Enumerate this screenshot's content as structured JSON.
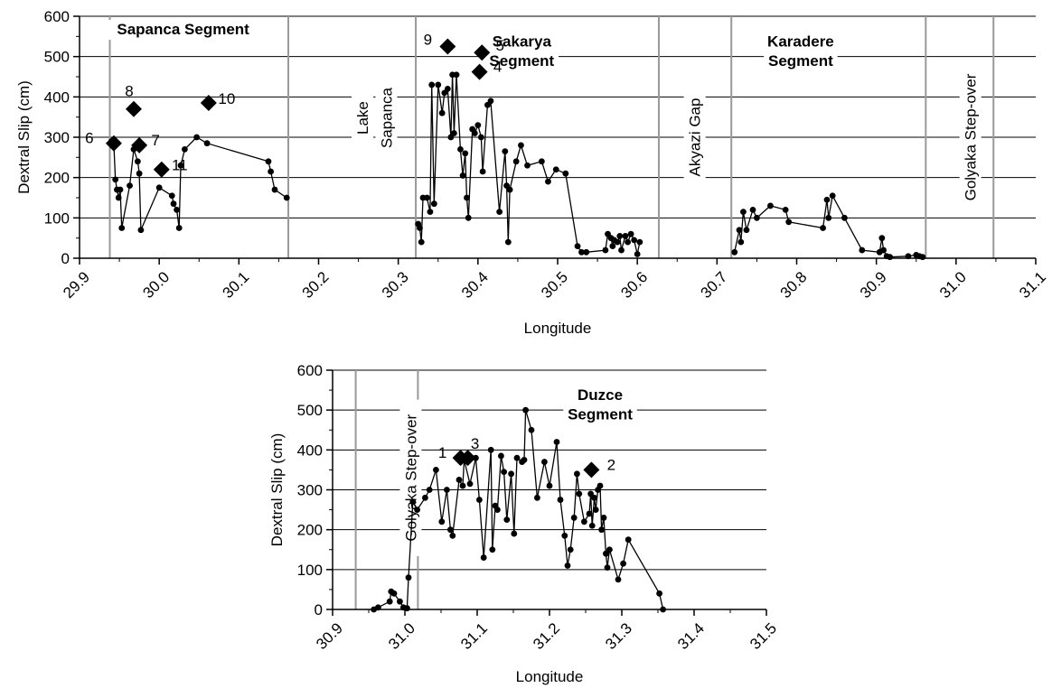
{
  "chart_data": [
    {
      "type": "scatter",
      "xlabel": "Longitude",
      "ylabel": "Dextral Slip (cm)",
      "xlim": [
        29.9,
        31.1
      ],
      "ylim": [
        0,
        600
      ],
      "x_ticks": [
        "29.9",
        "30.0",
        "30.1",
        "30.2",
        "30.3",
        "30.4",
        "30.5",
        "30.6",
        "30.7",
        "30.8",
        "30.9",
        "31.0",
        "31.1"
      ],
      "y_ticks": [
        "0",
        "100",
        "200",
        "300",
        "400",
        "500",
        "600"
      ],
      "grid": "horizontal",
      "boundary_lines": [
        29.938,
        30.162,
        30.322,
        30.627,
        30.718,
        30.962,
        31.047
      ],
      "segment_labels": [
        {
          "text": "Sapanca Segment",
          "x": 30.03,
          "y": 555
        },
        {
          "text": "Sakarya",
          "x": 30.455,
          "y": 525
        },
        {
          "text": "Segment",
          "x": 30.455,
          "y": 477
        },
        {
          "text": "Karadere",
          "x": 30.805,
          "y": 525
        },
        {
          "text": "Segment",
          "x": 30.805,
          "y": 477
        }
      ],
      "vertical_labels": [
        {
          "text": "Lake",
          "x": 30.255,
          "y": 348
        },
        {
          "text": "Sapanca",
          "x": 30.285,
          "y": 348
        },
        {
          "text": "Akyazi Gap",
          "x": 30.672,
          "y": 300
        },
        {
          "text": "Golyaka Step-over",
          "x": 31.018,
          "y": 300
        }
      ],
      "series": [
        {
          "values": [
            [
              29.94,
              290
            ],
            [
              29.943,
              285
            ],
            [
              29.945,
              195
            ],
            [
              29.947,
              170
            ],
            [
              29.949,
              150
            ],
            [
              29.951,
              170
            ],
            [
              29.953,
              75
            ],
            [
              29.963,
              180
            ],
            [
              29.968,
              270
            ],
            [
              29.973,
              240
            ],
            [
              29.975,
              210
            ],
            [
              29.977,
              70
            ],
            [
              30.0,
              175
            ],
            [
              30.016,
              155
            ],
            [
              30.018,
              135
            ],
            [
              30.022,
              120
            ],
            [
              30.025,
              75
            ],
            [
              30.027,
              230
            ],
            [
              30.032,
              270
            ],
            [
              30.047,
              300
            ],
            [
              30.06,
              285
            ],
            [
              30.137,
              240
            ],
            [
              30.14,
              215
            ],
            [
              30.145,
              170
            ],
            [
              30.16,
              150
            ]
          ]
        },
        {
          "values": [
            [
              30.325,
              85
            ],
            [
              30.327,
              75
            ],
            [
              30.329,
              40
            ],
            [
              30.331,
              150
            ],
            [
              30.336,
              150
            ],
            [
              30.34,
              115
            ],
            [
              30.342,
              430
            ],
            [
              30.345,
              135
            ],
            [
              30.35,
              430
            ],
            [
              30.355,
              360
            ],
            [
              30.358,
              410
            ],
            [
              30.362,
              420
            ],
            [
              30.366,
              300
            ],
            [
              30.368,
              455
            ],
            [
              30.37,
              310
            ],
            [
              30.373,
              455
            ],
            [
              30.378,
              270
            ],
            [
              30.381,
              205
            ],
            [
              30.384,
              260
            ],
            [
              30.386,
              150
            ],
            [
              30.388,
              100
            ],
            [
              30.393,
              320
            ],
            [
              30.396,
              310
            ],
            [
              30.4,
              330
            ],
            [
              30.404,
              300
            ],
            [
              30.406,
              215
            ],
            [
              30.412,
              380
            ],
            [
              30.416,
              390
            ],
            [
              30.427,
              115
            ],
            [
              30.434,
              265
            ],
            [
              30.436,
              180
            ],
            [
              30.438,
              40
            ],
            [
              30.44,
              170
            ],
            [
              30.448,
              240
            ],
            [
              30.454,
              280
            ],
            [
              30.462,
              230
            ],
            [
              30.48,
              240
            ],
            [
              30.488,
              190
            ],
            [
              30.498,
              220
            ],
            [
              30.51,
              210
            ],
            [
              30.525,
              30
            ],
            [
              30.53,
              15
            ],
            [
              30.536,
              15
            ],
            [
              30.56,
              20
            ],
            [
              30.563,
              60
            ],
            [
              30.567,
              50
            ],
            [
              30.569,
              30
            ],
            [
              30.571,
              45
            ],
            [
              30.575,
              40
            ],
            [
              30.578,
              55
            ],
            [
              30.58,
              20
            ],
            [
              30.585,
              55
            ],
            [
              30.588,
              40
            ],
            [
              30.592,
              60
            ],
            [
              30.596,
              45
            ],
            [
              30.6,
              10
            ],
            [
              30.603,
              40
            ]
          ]
        },
        {
          "values": [
            [
              30.722,
              15
            ],
            [
              30.728,
              70
            ],
            [
              30.73,
              40
            ],
            [
              30.733,
              115
            ],
            [
              30.737,
              70
            ],
            [
              30.745,
              120
            ],
            [
              30.75,
              100
            ],
            [
              30.767,
              130
            ],
            [
              30.786,
              120
            ],
            [
              30.79,
              90
            ],
            [
              30.833,
              75
            ],
            [
              30.838,
              145
            ],
            [
              30.84,
              100
            ],
            [
              30.845,
              155
            ],
            [
              30.86,
              100
            ],
            [
              30.882,
              20
            ],
            [
              30.904,
              15
            ],
            [
              30.907,
              50
            ],
            [
              30.909,
              20
            ],
            [
              30.913,
              5
            ],
            [
              30.917,
              3
            ],
            [
              30.94,
              5
            ],
            [
              30.95,
              8
            ],
            [
              30.954,
              5
            ],
            [
              30.958,
              3
            ]
          ]
        }
      ],
      "point_sizes": {
        "small_markers": true
      },
      "markers": [
        {
          "label": "6",
          "x": 29.943,
          "y": 285
        },
        {
          "label": "8",
          "x": 29.968,
          "y": 370
        },
        {
          "label": "7",
          "x": 29.975,
          "y": 280
        },
        {
          "label": "11",
          "x": 30.003,
          "y": 220
        },
        {
          "label": "10",
          "x": 30.062,
          "y": 385
        },
        {
          "label": "9",
          "x": 30.362,
          "y": 525
        },
        {
          "label": "5",
          "x": 30.405,
          "y": 510
        },
        {
          "label": "4",
          "x": 30.402,
          "y": 462
        }
      ]
    },
    {
      "type": "scatter",
      "xlabel": "Longitude",
      "ylabel": "Dextral Slip (cm)",
      "xlim": [
        30.9,
        31.5
      ],
      "ylim": [
        0,
        600
      ],
      "x_ticks": [
        "30.9",
        "31.0",
        "31.1",
        "31.2",
        "31.3",
        "31.4",
        "31.5"
      ],
      "y_ticks": [
        "0",
        "100",
        "200",
        "300",
        "400",
        "500",
        "600"
      ],
      "grid": "horizontal",
      "boundary_lines": [
        30.932,
        31.018
      ],
      "segment_labels": [
        {
          "text": "Duzce",
          "x": 31.27,
          "y": 525
        },
        {
          "text": "Segment",
          "x": 31.27,
          "y": 477
        }
      ],
      "vertical_labels": [
        {
          "text": "Golyaka Step-over",
          "x": 31.008,
          "y": 330
        }
      ],
      "series": [
        {
          "values": [
            [
              30.957,
              0
            ],
            [
              30.963,
              5
            ],
            [
              30.979,
              20
            ],
            [
              30.981,
              45
            ],
            [
              30.985,
              40
            ],
            [
              30.993,
              20
            ],
            [
              30.998,
              5
            ],
            [
              31.003,
              3
            ],
            [
              31.005,
              80
            ],
            [
              31.011,
              270
            ],
            [
              31.017,
              250
            ],
            [
              31.028,
              280
            ],
            [
              31.034,
              300
            ],
            [
              31.043,
              350
            ],
            [
              31.051,
              220
            ],
            [
              31.058,
              300
            ],
            [
              31.063,
              200
            ],
            [
              31.066,
              185
            ],
            [
              31.075,
              325
            ],
            [
              31.08,
              310
            ],
            [
              31.082,
              375
            ],
            [
              31.09,
              315
            ],
            [
              31.098,
              380
            ],
            [
              31.103,
              275
            ],
            [
              31.109,
              130
            ],
            [
              31.119,
              400
            ],
            [
              31.121,
              150
            ],
            [
              31.125,
              260
            ],
            [
              31.128,
              250
            ],
            [
              31.133,
              385
            ],
            [
              31.137,
              345
            ],
            [
              31.141,
              225
            ],
            [
              31.147,
              340
            ],
            [
              31.151,
              190
            ],
            [
              31.155,
              380
            ],
            [
              31.162,
              370
            ],
            [
              31.165,
              375
            ],
            [
              31.167,
              500
            ],
            [
              31.175,
              450
            ],
            [
              31.183,
              280
            ],
            [
              31.193,
              370
            ],
            [
              31.2,
              310
            ],
            [
              31.21,
              420
            ],
            [
              31.215,
              275
            ],
            [
              31.221,
              185
            ],
            [
              31.225,
              110
            ],
            [
              31.229,
              150
            ],
            [
              31.234,
              230
            ],
            [
              31.238,
              340
            ],
            [
              31.241,
              290
            ],
            [
              31.248,
              220
            ],
            [
              31.255,
              240
            ],
            [
              31.257,
              290
            ],
            [
              31.259,
              210
            ],
            [
              31.262,
              280
            ],
            [
              31.264,
              250
            ],
            [
              31.267,
              300
            ],
            [
              31.27,
              310
            ],
            [
              31.272,
              200
            ],
            [
              31.275,
              230
            ],
            [
              31.278,
              140
            ],
            [
              31.28,
              105
            ],
            [
              31.283,
              150
            ],
            [
              31.295,
              75
            ],
            [
              31.302,
              115
            ],
            [
              31.309,
              175
            ],
            [
              31.352,
              40
            ],
            [
              31.357,
              0
            ]
          ]
        }
      ],
      "markers": [
        {
          "label": "1",
          "x": 31.077,
          "y": 380
        },
        {
          "label": "3",
          "x": 31.087,
          "y": 380
        },
        {
          "label": "2",
          "x": 31.258,
          "y": 350
        }
      ]
    }
  ]
}
